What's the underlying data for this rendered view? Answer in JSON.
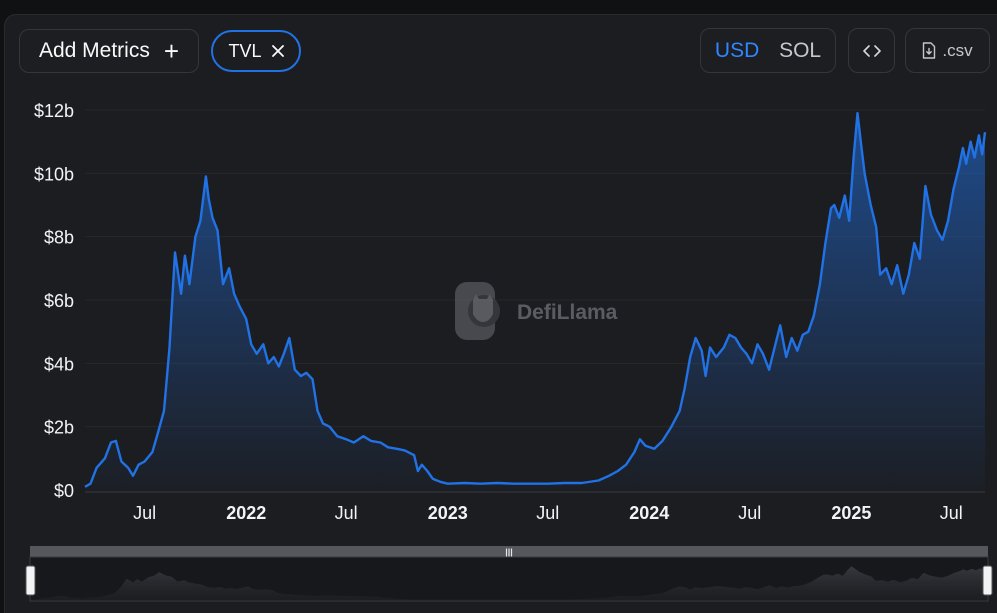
{
  "controls": {
    "add_metrics_label": "Add Metrics",
    "add_icon": "plus-icon",
    "chip_label": "TVL",
    "chip_close_icon": "close-icon",
    "currency_usd": "USD",
    "currency_sol": "SOL",
    "embed_label": "<>",
    "csv_label": ".csv",
    "csv_icon": "file-download-icon"
  },
  "watermark": {
    "text": "DefiLlama",
    "logo_icon": "llama-logo-icon"
  },
  "colors": {
    "line": "#2172e5",
    "accent": "#2f86ff",
    "background": "#1c1d21"
  },
  "chart_data": {
    "type": "area",
    "title": "",
    "xlabel": "",
    "ylabel": "",
    "ylim": [
      0,
      12.5
    ],
    "y_unit": "$b",
    "yticks": [
      0,
      2,
      4,
      6,
      8,
      10,
      12
    ],
    "ytick_labels": [
      "$0",
      "$2b",
      "$4b",
      "$6b",
      "$8b",
      "$10b",
      "$12b"
    ],
    "xlim": [
      "2021-03-15",
      "2025-08-31"
    ],
    "xticks": [
      {
        "date": "2021-07-01",
        "label": "Jul",
        "bold": false
      },
      {
        "date": "2022-01-01",
        "label": "2022",
        "bold": true
      },
      {
        "date": "2022-07-01",
        "label": "Jul",
        "bold": false
      },
      {
        "date": "2023-01-01",
        "label": "2023",
        "bold": true
      },
      {
        "date": "2023-07-01",
        "label": "Jul",
        "bold": false
      },
      {
        "date": "2024-01-01",
        "label": "2024",
        "bold": true
      },
      {
        "date": "2024-07-01",
        "label": "Jul",
        "bold": false
      },
      {
        "date": "2025-01-01",
        "label": "2025",
        "bold": true
      },
      {
        "date": "2025-07-01",
        "label": "Jul",
        "bold": false
      }
    ],
    "grid": true,
    "legend": "none",
    "series": [
      {
        "values": [
          [
            "2021-03-15",
            0.1
          ],
          [
            "2021-03-25",
            0.2
          ],
          [
            "2021-04-05",
            0.7
          ],
          [
            "2021-04-20",
            1.0
          ],
          [
            "2021-05-01",
            1.5
          ],
          [
            "2021-05-10",
            1.55
          ],
          [
            "2021-05-20",
            0.9
          ],
          [
            "2021-06-01",
            0.7
          ],
          [
            "2021-06-10",
            0.45
          ],
          [
            "2021-06-20",
            0.8
          ],
          [
            "2021-07-01",
            0.9
          ],
          [
            "2021-07-15",
            1.2
          ],
          [
            "2021-07-25",
            1.8
          ],
          [
            "2021-08-05",
            2.5
          ],
          [
            "2021-08-15",
            4.5
          ],
          [
            "2021-08-25",
            7.5
          ],
          [
            "2021-09-05",
            6.2
          ],
          [
            "2021-09-12",
            7.4
          ],
          [
            "2021-09-20",
            6.5
          ],
          [
            "2021-10-01",
            8.0
          ],
          [
            "2021-10-10",
            8.5
          ],
          [
            "2021-10-20",
            9.9
          ],
          [
            "2021-10-25",
            9.2
          ],
          [
            "2021-11-01",
            8.6
          ],
          [
            "2021-11-10",
            8.2
          ],
          [
            "2021-11-20",
            6.5
          ],
          [
            "2021-12-01",
            7.0
          ],
          [
            "2021-12-10",
            6.2
          ],
          [
            "2021-12-20",
            5.8
          ],
          [
            "2022-01-01",
            5.4
          ],
          [
            "2022-01-10",
            4.6
          ],
          [
            "2022-01-20",
            4.3
          ],
          [
            "2022-02-01",
            4.6
          ],
          [
            "2022-02-10",
            4.0
          ],
          [
            "2022-02-20",
            4.2
          ],
          [
            "2022-03-01",
            3.9
          ],
          [
            "2022-03-10",
            4.3
          ],
          [
            "2022-03-20",
            4.8
          ],
          [
            "2022-03-30",
            3.8
          ],
          [
            "2022-04-10",
            3.6
          ],
          [
            "2022-04-20",
            3.7
          ],
          [
            "2022-05-01",
            3.5
          ],
          [
            "2022-05-10",
            2.5
          ],
          [
            "2022-05-20",
            2.1
          ],
          [
            "2022-06-01",
            2.0
          ],
          [
            "2022-06-15",
            1.7
          ],
          [
            "2022-07-01",
            1.6
          ],
          [
            "2022-07-15",
            1.5
          ],
          [
            "2022-08-01",
            1.7
          ],
          [
            "2022-08-15",
            1.55
          ],
          [
            "2022-09-01",
            1.5
          ],
          [
            "2022-09-15",
            1.35
          ],
          [
            "2022-10-01",
            1.3
          ],
          [
            "2022-10-15",
            1.25
          ],
          [
            "2022-11-01",
            1.1
          ],
          [
            "2022-11-08",
            0.6
          ],
          [
            "2022-11-15",
            0.8
          ],
          [
            "2022-11-25",
            0.6
          ],
          [
            "2022-12-05",
            0.35
          ],
          [
            "2022-12-20",
            0.25
          ],
          [
            "2023-01-01",
            0.2
          ],
          [
            "2023-02-01",
            0.22
          ],
          [
            "2023-03-01",
            0.2
          ],
          [
            "2023-04-01",
            0.22
          ],
          [
            "2023-05-01",
            0.2
          ],
          [
            "2023-06-01",
            0.2
          ],
          [
            "2023-07-01",
            0.2
          ],
          [
            "2023-08-01",
            0.22
          ],
          [
            "2023-09-01",
            0.22
          ],
          [
            "2023-10-01",
            0.3
          ],
          [
            "2023-10-20",
            0.45
          ],
          [
            "2023-11-05",
            0.6
          ],
          [
            "2023-11-20",
            0.8
          ],
          [
            "2023-12-05",
            1.2
          ],
          [
            "2023-12-15",
            1.6
          ],
          [
            "2023-12-25",
            1.4
          ],
          [
            "2024-01-10",
            1.3
          ],
          [
            "2024-01-25",
            1.55
          ],
          [
            "2024-02-10",
            2.0
          ],
          [
            "2024-02-25",
            2.5
          ],
          [
            "2024-03-05",
            3.2
          ],
          [
            "2024-03-15",
            4.2
          ],
          [
            "2024-03-25",
            4.8
          ],
          [
            "2024-04-05",
            4.4
          ],
          [
            "2024-04-12",
            3.6
          ],
          [
            "2024-04-20",
            4.5
          ],
          [
            "2024-05-01",
            4.2
          ],
          [
            "2024-05-15",
            4.5
          ],
          [
            "2024-05-25",
            4.9
          ],
          [
            "2024-06-05",
            4.8
          ],
          [
            "2024-06-15",
            4.5
          ],
          [
            "2024-06-25",
            4.3
          ],
          [
            "2024-07-05",
            4.0
          ],
          [
            "2024-07-15",
            4.6
          ],
          [
            "2024-07-25",
            4.3
          ],
          [
            "2024-08-05",
            3.8
          ],
          [
            "2024-08-15",
            4.5
          ],
          [
            "2024-08-25",
            5.2
          ],
          [
            "2024-09-05",
            4.2
          ],
          [
            "2024-09-15",
            4.8
          ],
          [
            "2024-09-25",
            4.4
          ],
          [
            "2024-10-05",
            4.9
          ],
          [
            "2024-10-15",
            5.0
          ],
          [
            "2024-10-25",
            5.5
          ],
          [
            "2024-11-05",
            6.5
          ],
          [
            "2024-11-15",
            7.8
          ],
          [
            "2024-11-25",
            8.9
          ],
          [
            "2024-12-01",
            9.0
          ],
          [
            "2024-12-10",
            8.6
          ],
          [
            "2024-12-20",
            9.3
          ],
          [
            "2024-12-28",
            8.5
          ],
          [
            "2025-01-05",
            10.5
          ],
          [
            "2025-01-12",
            11.9
          ],
          [
            "2025-01-18",
            11.0
          ],
          [
            "2025-01-25",
            10.0
          ],
          [
            "2025-02-05",
            9.0
          ],
          [
            "2025-02-15",
            8.3
          ],
          [
            "2025-02-22",
            6.8
          ],
          [
            "2025-03-05",
            7.0
          ],
          [
            "2025-03-15",
            6.5
          ],
          [
            "2025-03-25",
            7.1
          ],
          [
            "2025-04-05",
            6.2
          ],
          [
            "2025-04-15",
            6.8
          ],
          [
            "2025-04-25",
            7.8
          ],
          [
            "2025-05-05",
            7.3
          ],
          [
            "2025-05-15",
            9.6
          ],
          [
            "2025-05-25",
            8.7
          ],
          [
            "2025-06-05",
            8.2
          ],
          [
            "2025-06-15",
            7.9
          ],
          [
            "2025-06-25",
            8.5
          ],
          [
            "2025-07-05",
            9.5
          ],
          [
            "2025-07-15",
            10.2
          ],
          [
            "2025-07-22",
            10.8
          ],
          [
            "2025-07-28",
            10.3
          ],
          [
            "2025-08-05",
            11.0
          ],
          [
            "2025-08-12",
            10.5
          ],
          [
            "2025-08-20",
            11.2
          ],
          [
            "2025-08-26",
            10.6
          ],
          [
            "2025-08-31",
            11.3
          ]
        ]
      }
    ]
  }
}
